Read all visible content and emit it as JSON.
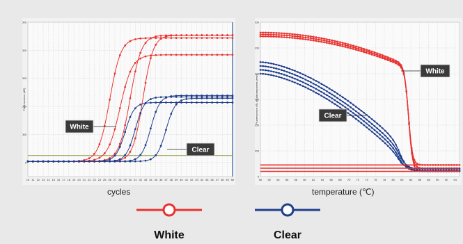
{
  "colors": {
    "white_series": "#e8322e",
    "clear_series": "#1f3d8c",
    "grid": "#c9c9c9",
    "threshold": "#8a9a3a",
    "annot_bg": "#3a3a3a",
    "panel_bg": "#f2f2f2",
    "axis_bar": "#2a5aa0"
  },
  "legend": {
    "white": "White",
    "clear": "Clear"
  },
  "chart_data": [
    {
      "type": "line",
      "title": "",
      "xlabel": "cycles",
      "ylabel": "Fluorescence (dR)",
      "xlim": [
        10,
        50
      ],
      "ylim": [
        -500,
        5000
      ],
      "grid": true,
      "x_ticks": [
        "10",
        "11",
        "12",
        "13",
        "14",
        "15",
        "16",
        "17",
        "18",
        "19",
        "20",
        "21",
        "22",
        "23",
        "24",
        "25",
        "26",
        "27",
        "28",
        "29",
        "30",
        "31",
        "32",
        "33",
        "34",
        "35",
        "36",
        "37",
        "38",
        "39",
        "40",
        "41",
        "42",
        "43",
        "44",
        "45",
        "46",
        "47",
        "48",
        "49",
        "50"
      ],
      "y_ticks": [
        "0",
        "1000",
        "2000",
        "3000",
        "4000",
        "5000"
      ],
      "threshold": 250,
      "annotations": [
        {
          "text": "White",
          "series": "White"
        },
        {
          "text": "Clear",
          "series": "Clear"
        }
      ],
      "series": [
        {
          "name": "White",
          "curves": [
            {
              "plateau": 4400,
              "midpoint": 26,
              "slope": 1.1
            },
            {
              "plateau": 3800,
              "midpoint": 28,
              "slope": 1.2
            },
            {
              "plateau": 4500,
              "midpoint": 30,
              "slope": 1.1
            },
            {
              "plateau": 4500,
              "midpoint": 32.5,
              "slope": 1.0
            }
          ]
        },
        {
          "name": "Clear",
          "curves": [
            {
              "plateau": 2100,
              "midpoint": 29,
              "slope": 0.9
            },
            {
              "plateau": 2300,
              "midpoint": 31,
              "slope": 0.9
            },
            {
              "plateau": 2350,
              "midpoint": 34,
              "slope": 0.9
            },
            {
              "plateau": 2250,
              "midpoint": 37,
              "slope": 0.9
            }
          ]
        }
      ]
    },
    {
      "type": "line",
      "title": "",
      "xlabel": "temperature (℃)",
      "ylabel": "Fluorescence (R) (multicomponent view)",
      "xlim": [
        50,
        95
      ],
      "ylim": [
        0,
        12000
      ],
      "grid": true,
      "x_ticks": [
        "50",
        "52",
        "54",
        "56",
        "58",
        "60",
        "62",
        "64",
        "66",
        "68",
        "70",
        "72",
        "74",
        "76",
        "78",
        "80",
        "82",
        "84",
        "86",
        "88",
        "90",
        "92",
        "94"
      ],
      "y_ticks": [
        "0",
        "2000",
        "4000",
        "6000",
        "8000",
        "10000",
        "12000"
      ],
      "annotations": [
        {
          "text": "White",
          "series": "White"
        },
        {
          "text": "Clear",
          "series": "Clear"
        }
      ],
      "series": [
        {
          "name": "White",
          "melt_temp": 83.5,
          "start": [
            11200,
            11050,
            10900
          ],
          "pre_melt_end": [
            8600,
            8500,
            8400
          ],
          "baseline": [
            400,
            650,
            900
          ]
        },
        {
          "name": "Clear",
          "melt_temp": 82,
          "start": [
            8900,
            8600,
            8300,
            8000
          ],
          "pre_melt_end": [
            2400,
            2000,
            1700,
            1400
          ],
          "baseline": [
            450,
            600
          ]
        }
      ]
    }
  ]
}
